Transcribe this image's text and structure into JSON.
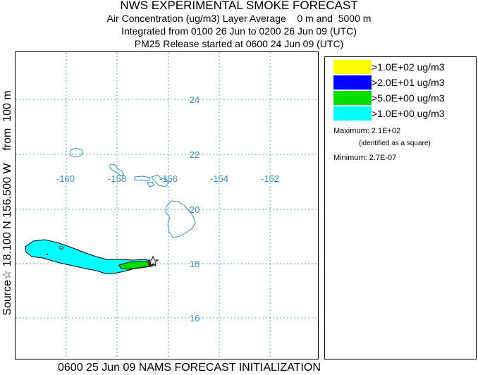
{
  "header": {
    "title": "NWS EXPERIMENTAL SMOKE FORECAST",
    "line1": "Air Concentration (ug/m3) Layer Average    0 m and  5000 m",
    "line2": "Integrated from 0100 26 Jun to 0200 26 Jun 09 (UTC)",
    "line3": "PM25 Release started at 0600 24 Jun 09 (UTC)"
  },
  "side_label": "Source☆ 18.100 N 156.500 W    from  100 m",
  "map": {
    "lon_labels": [
      "-160",
      "-158",
      "-156",
      "-154",
      "-152"
    ],
    "lat_labels": [
      "24",
      "22",
      "20",
      "18",
      "16"
    ],
    "grid_color": "#5aa0d8",
    "label_color": "#3a8cc6",
    "coast_color": "#3a8cc6",
    "plume_colors": {
      "cyan": "#00ffff",
      "green": "#00e000",
      "blue": "#0000ff",
      "yellow": "#ffff00"
    },
    "source_marker": "star-icon",
    "max_marker": "square-icon"
  },
  "legend": {
    "items": [
      {
        "label": ">1.0E+02 ug/m3",
        "color": "#ffff00"
      },
      {
        "label": ">2.0E+01 ug/m3",
        "color": "#0000ff"
      },
      {
        "label": ">5.0E+00 ug/m3",
        "color": "#00e000"
      },
      {
        "label": ">1.0E+00 ug/m3",
        "color": "#00ffff"
      }
    ],
    "maximum": "Maximum: 2.1E+02",
    "maximum_note": "(identified as a square)",
    "minimum": "Minimum: 2.7E-07"
  },
  "footer": "0600 25 Jun 09 NAMS FORECAST INITIALIZATION"
}
